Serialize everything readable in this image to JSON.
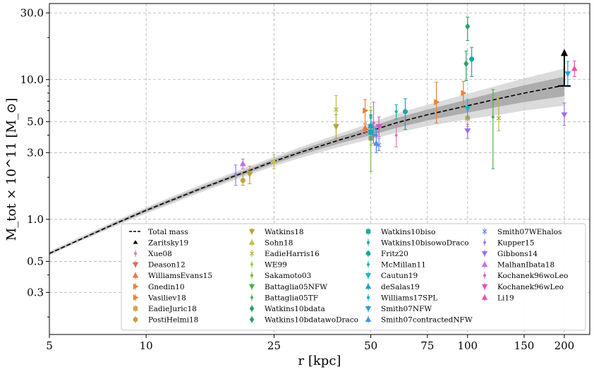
{
  "chart_data": {
    "type": "scatter",
    "xlabel": "r [kpc]",
    "ylabel": "M_tot × 10^11 [M_⊙]",
    "xscale": "log",
    "yscale": "log",
    "xlim": [
      5,
      240
    ],
    "ylim": [
      0.15,
      35
    ],
    "xticks": [
      5,
      10,
      25,
      50,
      75,
      100,
      150,
      200
    ],
    "xtick_labels": [
      "5",
      "10",
      "25",
      "50",
      "75",
      "100",
      "150",
      "200"
    ],
    "yticks": [
      0.3,
      0.5,
      1.0,
      3.0,
      5.0,
      10.0,
      30.0
    ],
    "ytick_labels": [
      "0.3",
      "0.5",
      "1.0",
      "3.0",
      "5.0",
      "10.0",
      "30.0"
    ],
    "grid": true,
    "legend_position": "bottom-right",
    "colors": {
      "model_line": "#000000",
      "band_inner": "#9a9a9a",
      "band_outer": "#cfcfcf",
      "grid": "#b0b0b0"
    },
    "total_mass_curve": {
      "name": "Total mass",
      "x": [
        5,
        6,
        8,
        10,
        12,
        15,
        20,
        25,
        30,
        40,
        50,
        60,
        75,
        100,
        125,
        150,
        200
      ],
      "y": [
        0.57,
        0.69,
        0.93,
        1.16,
        1.37,
        1.68,
        2.15,
        2.6,
        3.0,
        3.7,
        4.3,
        4.9,
        5.6,
        6.5,
        7.3,
        8.0,
        9.1
      ],
      "band_inner_low": [
        0.56,
        0.68,
        0.91,
        1.13,
        1.33,
        1.63,
        2.08,
        2.5,
        2.87,
        3.5,
        4.0,
        4.5,
        5.1,
        5.8,
        6.4,
        6.9,
        7.6
      ],
      "band_inner_high": [
        0.58,
        0.7,
        0.95,
        1.19,
        1.41,
        1.73,
        2.22,
        2.7,
        3.13,
        3.9,
        4.6,
        5.3,
        6.1,
        7.2,
        8.2,
        9.1,
        10.5
      ],
      "band_outer_low": [
        0.55,
        0.67,
        0.89,
        1.1,
        1.29,
        1.58,
        2.01,
        2.4,
        2.74,
        3.3,
        3.75,
        4.15,
        4.65,
        5.2,
        5.6,
        6.0,
        6.5
      ],
      "band_outer_high": [
        0.59,
        0.72,
        0.97,
        1.22,
        1.45,
        1.79,
        2.3,
        2.8,
        3.27,
        4.1,
        4.9,
        5.7,
        6.6,
        7.9,
        9.1,
        10.2,
        12.0
      ]
    },
    "lower_limit": {
      "name": "Zaritsky19",
      "x": 200,
      "y": 9.0,
      "arrow_to": 16.0,
      "color": "#000000"
    },
    "series": [
      {
        "name": "Xue08",
        "color": "#e377c2",
        "marker": "point",
        "points": [
          {
            "x": 60,
            "y": 4.0,
            "lo": 3.3,
            "hi": 4.7
          }
        ]
      },
      {
        "name": "Deason12",
        "color": "#e8625e",
        "marker": "triangle-down",
        "points": [
          {
            "x": 50,
            "y": 4.2,
            "lo": 3.9,
            "hi": 4.6
          }
        ]
      },
      {
        "name": "WilliamsEvans15",
        "color": "#f0743a",
        "marker": "triangle-up",
        "points": [
          {
            "x": 48,
            "y": 4.5,
            "lo": 4.2,
            "hi": 4.8
          }
        ]
      },
      {
        "name": "Gnedin10",
        "color": "#e8813a",
        "marker": "triangle-right",
        "points": [
          {
            "x": 80,
            "y": 6.9,
            "lo": 4.9,
            "hi": 9.6
          },
          {
            "x": 97,
            "y": 8.0,
            "lo": 6.3,
            "hi": 9.7
          }
        ]
      },
      {
        "name": "Vasiliev18",
        "color": "#e8813a",
        "marker": "triangle-right",
        "points": [
          {
            "x": 48,
            "y": 6.0,
            "lo": 4.9,
            "hi": 7.2
          }
        ]
      },
      {
        "name": "EadieJuric18",
        "color": "#d8a54a",
        "marker": "square",
        "points": [
          {
            "x": 50,
            "y": 3.8,
            "lo": 3.4,
            "hi": 4.2
          },
          {
            "x": 100,
            "y": 5.3,
            "lo": 4.6,
            "hi": 6.1
          }
        ]
      },
      {
        "name": "PostiHelmi18",
        "color": "#c8a03a",
        "marker": "circle",
        "points": [
          {
            "x": 20,
            "y": 1.9,
            "lo": 1.75,
            "hi": 2.1
          }
        ]
      },
      {
        "name": "Watkins18",
        "color": "#b8a03a",
        "marker": "triangle-down",
        "points": [
          {
            "x": 21,
            "y": 2.1,
            "lo": 1.8,
            "hi": 2.4
          },
          {
            "x": 39,
            "y": 4.6,
            "lo": 3.8,
            "hi": 5.6
          }
        ]
      },
      {
        "name": "Sohn18",
        "color": "#bfc04a",
        "marker": "triangle-up",
        "points": [
          {
            "x": 25,
            "y": 2.6,
            "lo": 2.3,
            "hi": 2.9
          }
        ]
      },
      {
        "name": "EadieHarris16",
        "color": "#b5ba4a",
        "marker": "x",
        "points": [
          {
            "x": 39,
            "y": 6.1,
            "lo": 4.8,
            "hi": 7.7
          },
          {
            "x": 125,
            "y": 5.3,
            "lo": 4.3,
            "hi": 7.5
          }
        ]
      },
      {
        "name": "WE99",
        "color": "#9acd40",
        "marker": "point",
        "points": [
          {
            "x": 50,
            "y": 5.4,
            "lo": 4.4,
            "hi": 6.4
          }
        ]
      },
      {
        "name": "Sakamoto03",
        "color": "#7cb342",
        "marker": "point",
        "points": [
          {
            "x": 50,
            "y": 5.5,
            "lo": 2.2,
            "hi": 6.0
          }
        ]
      },
      {
        "name": "Battaglia05NFW",
        "color": "#4caf50",
        "marker": "triangle-down",
        "points": [
          {
            "x": 50,
            "y": 4.6,
            "lo": 3.9,
            "hi": 5.3
          }
        ]
      },
      {
        "name": "Battaglia05TF",
        "color": "#4caf50",
        "marker": "point",
        "points": [
          {
            "x": 120,
            "y": 5.4,
            "lo": 2.3,
            "hi": 8.5
          }
        ]
      },
      {
        "name": "Watkins10bdata",
        "color": "#2ca25f",
        "marker": "diamond",
        "points": [
          {
            "x": 100,
            "y": 24.0,
            "lo": 19.0,
            "hi": 28.0
          }
        ]
      },
      {
        "name": "Watkins10bdatawoDraco",
        "color": "#2ca25f",
        "marker": "diamond",
        "points": [
          {
            "x": 99,
            "y": 13.0,
            "lo": 9.8,
            "hi": 16.0
          }
        ]
      },
      {
        "name": "Watkins10biso",
        "color": "#1ea898",
        "marker": "square",
        "points": [
          {
            "x": 50,
            "y": 4.2,
            "lo": 3.7,
            "hi": 4.6
          }
        ]
      },
      {
        "name": "Watkins10bisowoDraco",
        "color": "#1ea898",
        "marker": "point",
        "points": [
          {
            "x": 51,
            "y": 4.0,
            "lo": 3.5,
            "hi": 4.5
          }
        ]
      },
      {
        "name": "Fritz20",
        "color": "#17a8a0",
        "marker": "circle",
        "points": [
          {
            "x": 64,
            "y": 5.9,
            "lo": 4.4,
            "hi": 7.3
          },
          {
            "x": 103,
            "y": 14.0,
            "lo": 10.5,
            "hi": 17.0
          }
        ]
      },
      {
        "name": "McMillan11",
        "color": "#17b4b4",
        "marker": "point",
        "points": [
          {
            "x": 60,
            "y": 5.9,
            "lo": 5.2,
            "hi": 6.6
          }
        ]
      },
      {
        "name": "Cautun19",
        "color": "#17b4c8",
        "marker": "triangle-down",
        "points": [
          {
            "x": 100,
            "y": 6.2,
            "lo": 5.3,
            "hi": 7.2
          }
        ]
      },
      {
        "name": "deSalas19",
        "color": "#17a0c8",
        "marker": "triangle-up",
        "points": [
          {
            "x": 50,
            "y": 4.7,
            "lo": 3.8,
            "hi": 5.6
          }
        ]
      },
      {
        "name": "Williams17SPL",
        "color": "#17a8d8",
        "marker": "point",
        "points": [
          {
            "x": 52,
            "y": 4.0,
            "lo": 3.5,
            "hi": 4.5
          }
        ]
      },
      {
        "name": "Smith07NFW",
        "color": "#2ca0dc",
        "marker": "triangle-down",
        "points": [
          {
            "x": 205,
            "y": 11.0,
            "lo": 9.0,
            "hi": 13.5
          }
        ]
      },
      {
        "name": "Smith07contractedNFW",
        "color": "#4a8ee8",
        "marker": "triangle-up",
        "points": [
          {
            "x": 52,
            "y": 3.5,
            "lo": 3.0,
            "hi": 4.2
          }
        ]
      },
      {
        "name": "Smith07WEhalos",
        "color": "#6a8ae8",
        "marker": "x",
        "points": [
          {
            "x": 53,
            "y": 3.4,
            "lo": 3.1,
            "hi": 3.8
          }
        ]
      },
      {
        "name": "Kupper15",
        "color": "#9a80e8",
        "marker": "point",
        "points": [
          {
            "x": 19,
            "y": 2.1,
            "lo": 1.75,
            "hi": 2.45
          }
        ]
      },
      {
        "name": "Gibbons14",
        "color": "#a070e8",
        "marker": "triangle-down",
        "points": [
          {
            "x": 100,
            "y": 4.3,
            "lo": 3.8,
            "hi": 4.8
          },
          {
            "x": 200,
            "y": 5.6,
            "lo": 4.7,
            "hi": 6.8
          }
        ]
      },
      {
        "name": "MalhanIbata18",
        "color": "#c070e8",
        "marker": "triangle-up",
        "points": [
          {
            "x": 20,
            "y": 2.5,
            "lo": 2.3,
            "hi": 2.7
          }
        ]
      },
      {
        "name": "Kochanek96woLeo",
        "color": "#d060d8",
        "marker": "point",
        "points": [
          {
            "x": 51,
            "y": 4.9,
            "lo": 3.9,
            "hi": 6.9
          }
        ]
      },
      {
        "name": "Kochanek96wLeo",
        "color": "#e050c8",
        "marker": "triangle-down",
        "points": [
          {
            "x": 53,
            "y": 4.6,
            "lo": 3.9,
            "hi": 5.4
          }
        ]
      },
      {
        "name": "Li19",
        "color": "#f050b0",
        "marker": "triangle-up",
        "points": [
          {
            "x": 215,
            "y": 12.0,
            "lo": 10.5,
            "hi": 13.6
          }
        ]
      }
    ],
    "legend_entries": [
      {
        "label": "Total mass",
        "color": "#000000",
        "marker": "dashed-line"
      },
      {
        "label": "Zaritsky19",
        "color": "#000000",
        "marker": "arrow-up"
      },
      {
        "label": "Xue08",
        "color": "#e377c2",
        "marker": "point"
      },
      {
        "label": "Deason12",
        "color": "#e8625e",
        "marker": "triangle-down"
      },
      {
        "label": "WilliamsEvans15",
        "color": "#f0743a",
        "marker": "triangle-up"
      },
      {
        "label": "Gnedin10",
        "color": "#e8813a",
        "marker": "triangle-right"
      },
      {
        "label": "Vasiliev18",
        "color": "#e8813a",
        "marker": "triangle-right"
      },
      {
        "label": "EadieJuric18",
        "color": "#d8a54a",
        "marker": "square"
      },
      {
        "label": "PostiHelmi18",
        "color": "#c8a03a",
        "marker": "circle"
      },
      {
        "label": "Watkins18",
        "color": "#b8a03a",
        "marker": "triangle-down"
      },
      {
        "label": "Sohn18",
        "color": "#bfc04a",
        "marker": "triangle-up"
      },
      {
        "label": "EadieHarris16",
        "color": "#b5ba4a",
        "marker": "x"
      },
      {
        "label": "WE99",
        "color": "#9acd40",
        "marker": "point"
      },
      {
        "label": "Sakamoto03",
        "color": "#7cb342",
        "marker": "point"
      },
      {
        "label": "Battaglia05NFW",
        "color": "#4caf50",
        "marker": "triangle-down"
      },
      {
        "label": "Battaglia05TF",
        "color": "#4caf50",
        "marker": "point"
      },
      {
        "label": "Watkins10bdata",
        "color": "#2ca25f",
        "marker": "diamond"
      },
      {
        "label": "Watkins10bdatawoDraco",
        "color": "#2ca25f",
        "marker": "diamond"
      },
      {
        "label": "Watkins10biso",
        "color": "#1ea898",
        "marker": "square"
      },
      {
        "label": "Watkins10bisowoDraco",
        "color": "#1ea898",
        "marker": "point"
      },
      {
        "label": "Fritz20",
        "color": "#17a8a0",
        "marker": "circle"
      },
      {
        "label": "McMillan11",
        "color": "#17b4b4",
        "marker": "point"
      },
      {
        "label": "Cautun19",
        "color": "#17b4c8",
        "marker": "triangle-down"
      },
      {
        "label": "deSalas19",
        "color": "#17a0c8",
        "marker": "triangle-up"
      },
      {
        "label": "Williams17SPL",
        "color": "#17a8d8",
        "marker": "point"
      },
      {
        "label": "Smith07NFW",
        "color": "#2ca0dc",
        "marker": "triangle-down"
      },
      {
        "label": "Smith07contractedNFW",
        "color": "#4a8ee8",
        "marker": "triangle-up"
      },
      {
        "label": "Smith07WEhalos",
        "color": "#6a8ae8",
        "marker": "x"
      },
      {
        "label": "Kupper15",
        "color": "#9a80e8",
        "marker": "point"
      },
      {
        "label": "Gibbons14",
        "color": "#a070e8",
        "marker": "triangle-down"
      },
      {
        "label": "MalhanIbata18",
        "color": "#c070e8",
        "marker": "triangle-up"
      },
      {
        "label": "Kochanek96woLeo",
        "color": "#d060d8",
        "marker": "point"
      },
      {
        "label": "Kochanek96wLeo",
        "color": "#e050c8",
        "marker": "triangle-down"
      },
      {
        "label": "Li19",
        "color": "#f050b0",
        "marker": "triangle-up"
      }
    ]
  }
}
